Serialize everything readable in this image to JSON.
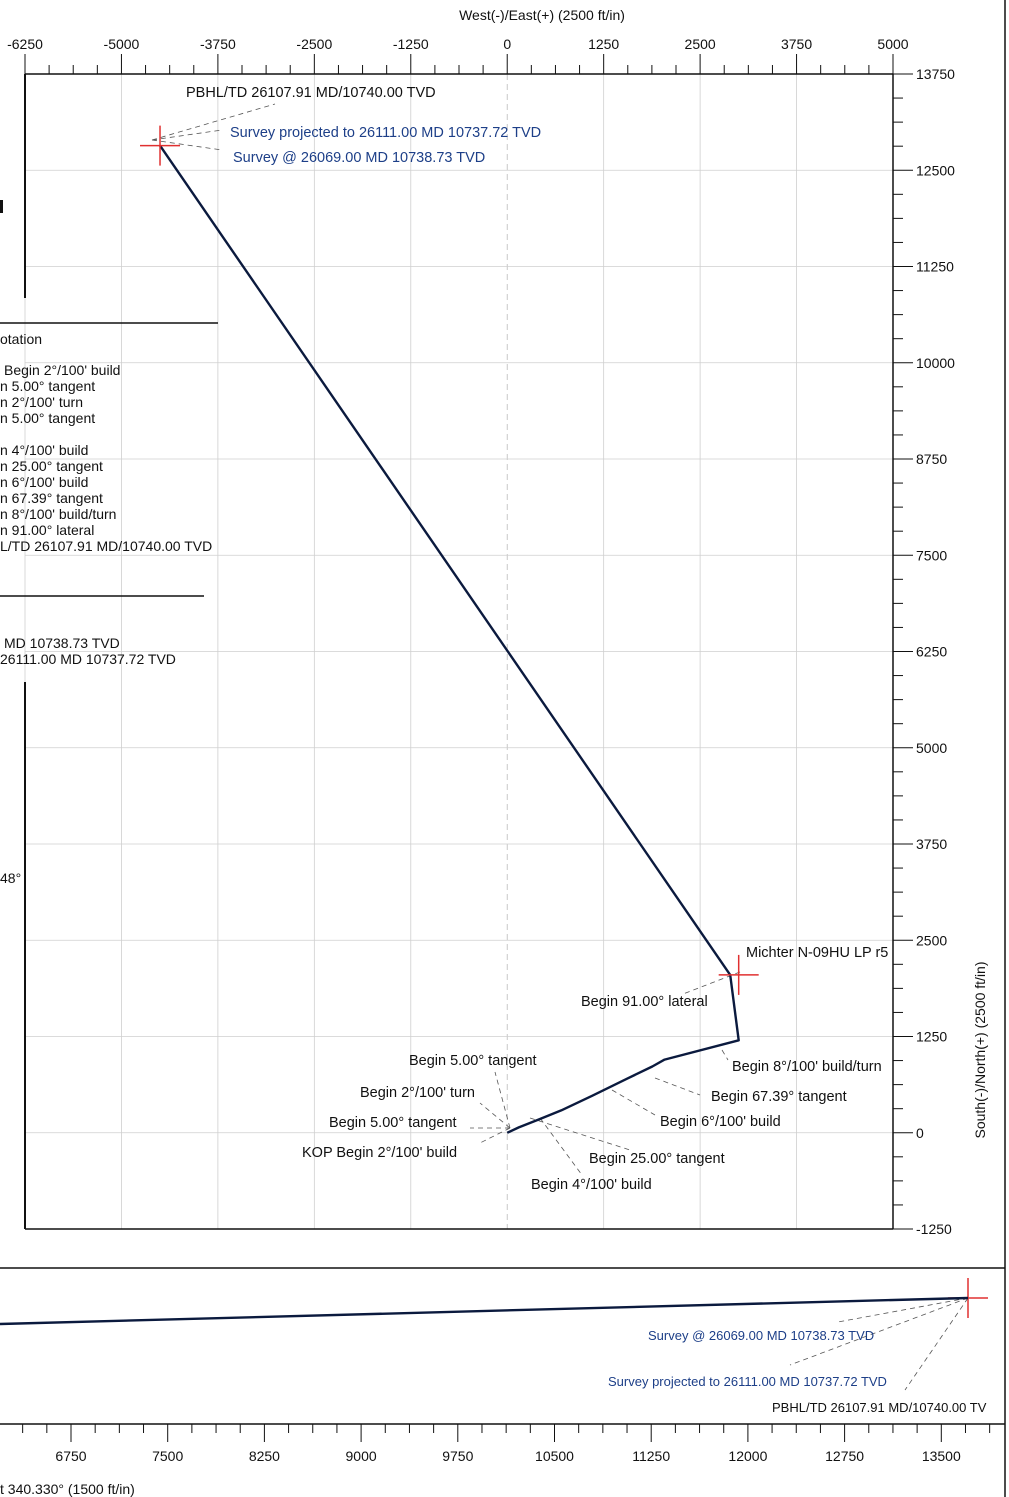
{
  "chart_data": [
    {
      "type": "line",
      "title": "",
      "xlabel": "West(-)/East(+) (2500 ft/in)",
      "ylabel": "South(-)/North(+) (2500 ft/in)",
      "xlim": [
        -6250,
        5000
      ],
      "ylim": [
        -1250,
        13750
      ],
      "x_ticks": [
        "-6250",
        "-5000",
        "-3750",
        "-2500",
        "-1250",
        "0",
        "1250",
        "2500",
        "3750",
        "5000"
      ],
      "y_ticks": [
        "13750",
        "12500",
        "11250",
        "10000",
        "8750",
        "7500",
        "6250",
        "5000",
        "3750",
        "2500",
        "1250",
        "0",
        "-1250"
      ],
      "series": [
        {
          "x": [
            0,
            150,
            400,
            700,
            1100,
            1550,
            1880,
            2040,
            3000,
            2890,
            -4500
          ],
          "y": [
            0,
            70,
            170,
            290,
            480,
            700,
            860,
            950,
            1200,
            2050,
            12820
          ]
        }
      ],
      "markers": [
        {
          "x": 3000,
          "y": 2050,
          "color": "#e03030"
        },
        {
          "x": -4500,
          "y": 12820,
          "color": "#e03030"
        }
      ],
      "annotations": [
        {
          "text": "PBHL/TD 26107.91 MD/10740.00 TVD",
          "color": "#111111"
        },
        {
          "text": "Survey projected to 26111.00 MD 10737.72 TVD",
          "color": "#1d3f88"
        },
        {
          "text": "Survey @ 26069.00 MD 10738.73 TVD",
          "color": "#1d3f88"
        },
        {
          "text": "Michter N-09HU LP r5",
          "color": "#111111"
        },
        {
          "text": "Begin 91.00° lateral",
          "color": "#111111"
        },
        {
          "text": "Begin 8°/100' build/turn",
          "color": "#111111"
        },
        {
          "text": "Begin 67.39° tangent",
          "color": "#111111"
        },
        {
          "text": "Begin 6°/100' build",
          "color": "#111111"
        },
        {
          "text": "Begin 5.00° tangent",
          "color": "#111111"
        },
        {
          "text": "Begin 2°/100' turn",
          "color": "#111111"
        },
        {
          "text": "Begin 5.00° tangent",
          "color": "#111111"
        },
        {
          "text": "KOP Begin 2°/100' build",
          "color": "#111111"
        },
        {
          "text": "Begin 25.00° tangent",
          "color": "#111111"
        },
        {
          "text": "Begin 4°/100' build",
          "color": "#111111"
        }
      ]
    },
    {
      "type": "line",
      "xlabel": "t 340.330° (1500 ft/in)",
      "x_ticks": [
        "6750",
        "7500",
        "8250",
        "9000",
        "9750",
        "10500",
        "11250",
        "12000",
        "12750",
        "13500"
      ],
      "annotations": [
        {
          "text": "Survey @ 26069.00 MD 10738.73 TVD",
          "color": "#1d3f88"
        },
        {
          "text": "Survey projected to 26111.00 MD 10737.72 TVD",
          "color": "#1d3f88"
        },
        {
          "text": "PBHL/TD 26107.91 MD/10740.00 TV",
          "color": "#111111"
        }
      ]
    }
  ],
  "legend_panel": {
    "heading": "otation",
    "entries": [
      "Begin 2°/100' build",
      "n 5.00° tangent",
      "n 2°/100' turn",
      "n 5.00° tangent",
      "n 4°/100' build",
      "n 25.00° tangent",
      "n 6°/100' build",
      "n 67.39° tangent",
      "n 8°/100' build/turn",
      "n 91.00° lateral",
      "L/TD 26107.91 MD/10740.00 TVD"
    ],
    "survey_lines": [
      "MD 10738.73 TVD",
      "26111.00 MD 10737.72 TVD"
    ],
    "fragment": "48°"
  },
  "colors": {
    "path": "#0b1a3e",
    "marker": "#e03030",
    "survey_text": "#1d3f88",
    "grid": "#cfcfcf"
  }
}
